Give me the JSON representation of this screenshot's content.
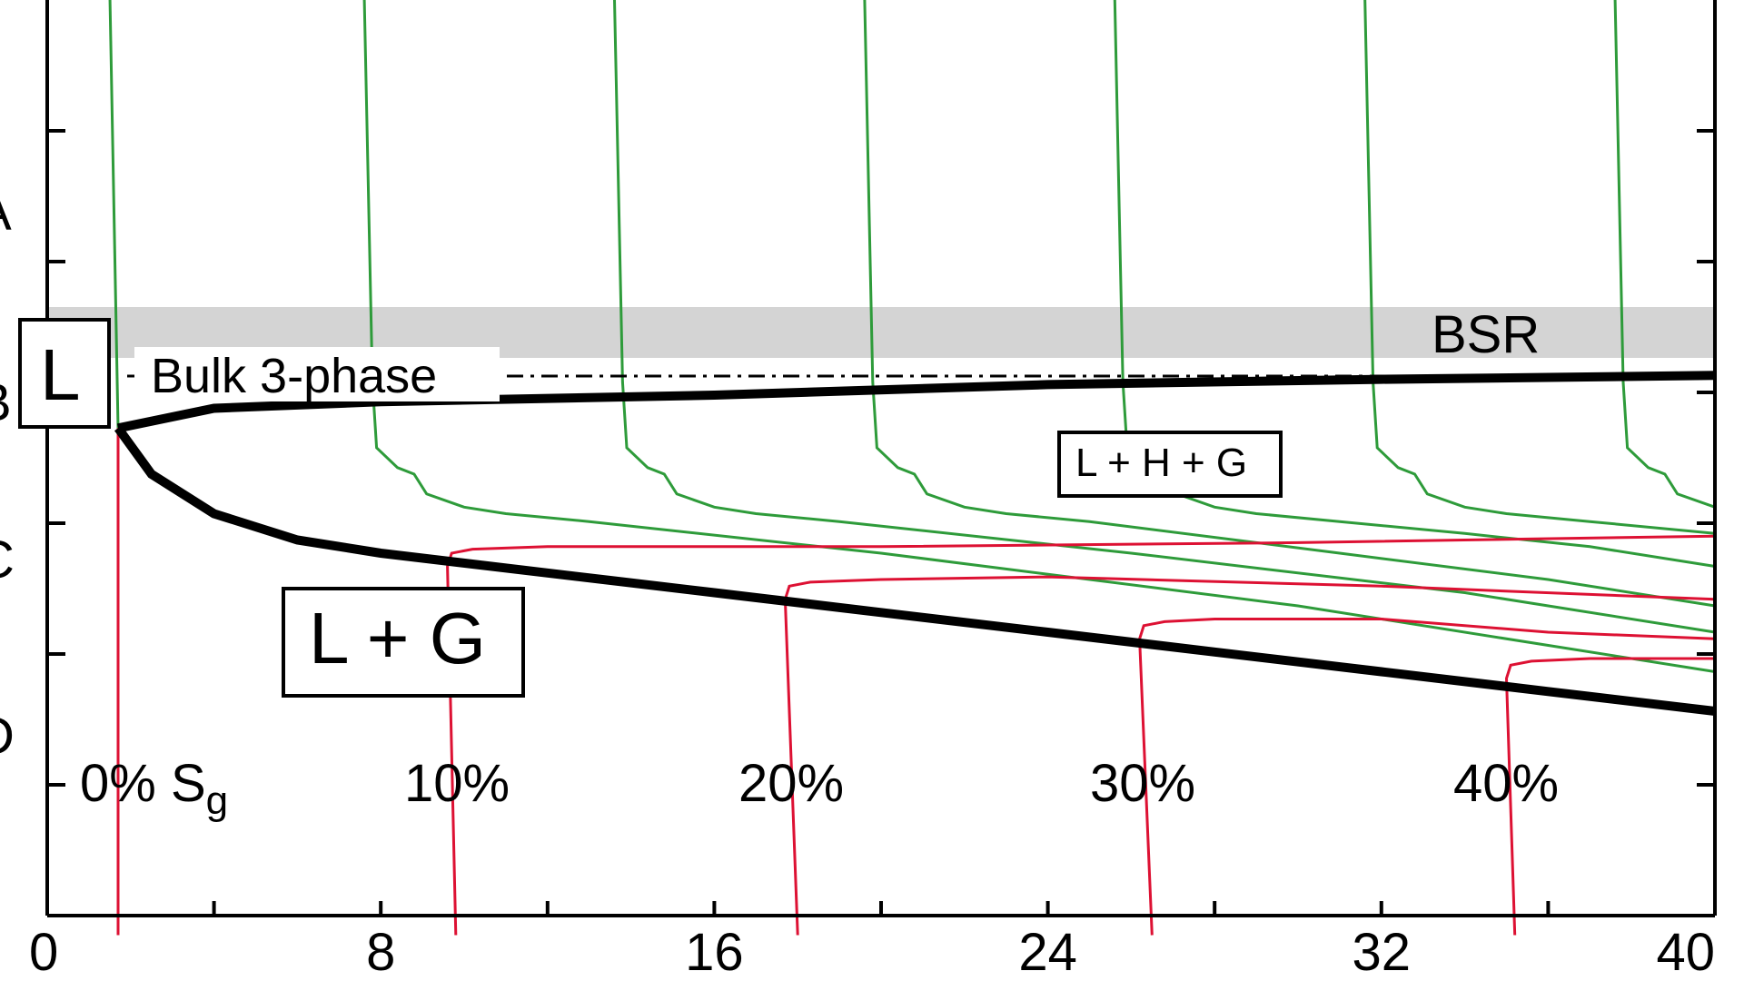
{
  "chart_data": {
    "type": "line",
    "xlim": [
      0,
      40
    ],
    "x_ticks": [
      0,
      8,
      16,
      24,
      32,
      40
    ],
    "x_tick_labels": [
      "0",
      "8",
      "16",
      "24",
      "32",
      "40"
    ],
    "y_tick_labels_partial": [
      "A",
      "B",
      "C",
      "D"
    ],
    "colors": {
      "black": "#000000",
      "green": "#2e9b3a",
      "red": "#dd1133",
      "band": "#d4d4d4"
    },
    "bsr_band": {
      "label": "BSR"
    },
    "bulk_line": {
      "label": "Bulk 3-phase"
    },
    "region_labels": {
      "l": "L",
      "lhg": "L + H + G",
      "lg": "L + G"
    },
    "saturation_labels": [
      {
        "text": "0% S",
        "sub": "g",
        "x": 2.5
      },
      {
        "text": "10%",
        "x": 10
      },
      {
        "text": "20%",
        "x": 18
      },
      {
        "text": "30%",
        "x": 26.5
      },
      {
        "text": "40%",
        "x": 35.2
      }
    ],
    "upper_boundary": [
      [
        1.7,
        3.25
      ],
      [
        4,
        3.1
      ],
      [
        8,
        3.05
      ],
      [
        16,
        3.0
      ],
      [
        24,
        2.92
      ],
      [
        32,
        2.88
      ],
      [
        40,
        2.85
      ]
    ],
    "lower_boundary": [
      [
        1.7,
        3.25
      ],
      [
        2.5,
        3.6
      ],
      [
        4,
        3.9
      ],
      [
        6,
        4.1
      ],
      [
        8,
        4.2
      ],
      [
        12,
        4.35
      ],
      [
        16,
        4.5
      ],
      [
        20,
        4.65
      ],
      [
        24,
        4.8
      ],
      [
        28,
        4.95
      ],
      [
        32,
        5.1
      ],
      [
        36,
        5.25
      ],
      [
        40,
        5.4
      ]
    ],
    "green_series": [
      [
        [
          1.5,
          -0.1
        ],
        [
          1.7,
          3.25
        ]
      ],
      [
        [
          7.6,
          -0.1
        ],
        [
          7.8,
          2.9
        ],
        [
          7.9,
          3.4
        ],
        [
          8.4,
          3.55
        ],
        [
          8.8,
          3.6
        ],
        [
          9.1,
          3.75
        ],
        [
          10,
          3.85
        ],
        [
          11,
          3.9
        ],
        [
          13,
          3.96
        ],
        [
          20,
          4.2
        ],
        [
          30,
          4.6
        ],
        [
          40,
          5.1
        ]
      ],
      [
        [
          13.6,
          -0.1
        ],
        [
          13.8,
          2.9
        ],
        [
          13.9,
          3.4
        ],
        [
          14.4,
          3.55
        ],
        [
          14.8,
          3.6
        ],
        [
          15.1,
          3.75
        ],
        [
          16,
          3.85
        ],
        [
          17,
          3.9
        ],
        [
          19,
          3.96
        ],
        [
          26,
          4.2
        ],
        [
          34,
          4.5
        ],
        [
          40,
          4.8
        ]
      ],
      [
        [
          19.6,
          -0.1
        ],
        [
          19.8,
          2.9
        ],
        [
          19.9,
          3.4
        ],
        [
          20.4,
          3.55
        ],
        [
          20.8,
          3.6
        ],
        [
          21.1,
          3.75
        ],
        [
          22,
          3.85
        ],
        [
          23,
          3.9
        ],
        [
          25,
          3.96
        ],
        [
          31,
          4.2
        ],
        [
          36,
          4.4
        ],
        [
          40,
          4.6
        ]
      ],
      [
        [
          25.6,
          -0.1
        ],
        [
          25.8,
          2.9
        ],
        [
          25.9,
          3.4
        ],
        [
          26.4,
          3.55
        ],
        [
          26.8,
          3.6
        ],
        [
          27.1,
          3.75
        ],
        [
          28,
          3.85
        ],
        [
          29,
          3.9
        ],
        [
          31,
          3.96
        ],
        [
          34,
          4.05
        ],
        [
          37,
          4.15
        ],
        [
          40,
          4.3
        ]
      ],
      [
        [
          31.6,
          -0.1
        ],
        [
          31.8,
          2.9
        ],
        [
          31.9,
          3.4
        ],
        [
          32.4,
          3.55
        ],
        [
          32.8,
          3.6
        ],
        [
          33.1,
          3.75
        ],
        [
          34,
          3.85
        ],
        [
          35,
          3.9
        ],
        [
          37,
          3.96
        ],
        [
          40,
          4.05
        ]
      ],
      [
        [
          37.6,
          -0.1
        ],
        [
          37.8,
          2.9
        ],
        [
          37.9,
          3.4
        ],
        [
          38.4,
          3.55
        ],
        [
          38.8,
          3.6
        ],
        [
          39.1,
          3.75
        ],
        [
          40,
          3.85
        ]
      ]
    ],
    "red_series": [
      [
        [
          1.7,
          3.25
        ],
        [
          1.7,
          7.1
        ]
      ],
      [
        [
          9.8,
          7.1
        ],
        [
          9.6,
          4.3
        ],
        [
          9.7,
          4.2
        ],
        [
          10.2,
          4.17
        ],
        [
          12,
          4.15
        ],
        [
          20,
          4.15
        ],
        [
          30,
          4.12
        ],
        [
          40,
          4.07
        ]
      ],
      [
        [
          18,
          7.1
        ],
        [
          17.7,
          4.55
        ],
        [
          17.8,
          4.45
        ],
        [
          18.3,
          4.42
        ],
        [
          20,
          4.4
        ],
        [
          24,
          4.38
        ],
        [
          32,
          4.45
        ],
        [
          40,
          4.55
        ]
      ],
      [
        [
          26.5,
          7.1
        ],
        [
          26.2,
          4.85
        ],
        [
          26.3,
          4.75
        ],
        [
          26.8,
          4.72
        ],
        [
          28,
          4.7
        ],
        [
          32,
          4.7
        ],
        [
          36,
          4.8
        ],
        [
          40,
          4.85
        ]
      ],
      [
        [
          35.2,
          7.1
        ],
        [
          35,
          5.15
        ],
        [
          35.1,
          5.05
        ],
        [
          35.6,
          5.02
        ],
        [
          37,
          5.0
        ],
        [
          40,
          5.0
        ]
      ]
    ]
  }
}
